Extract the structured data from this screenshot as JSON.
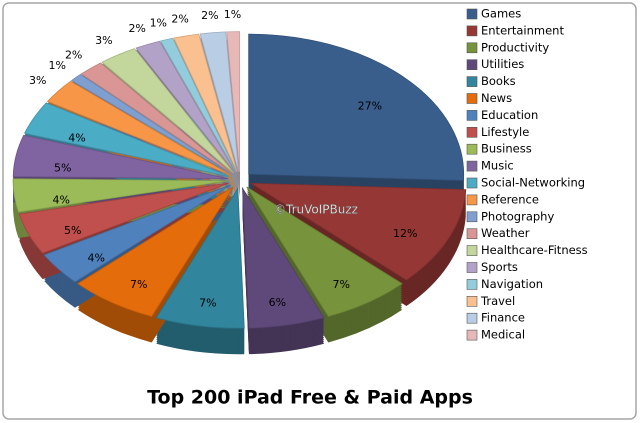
{
  "chart_data": {
    "type": "pie",
    "title": "Top 200 iPad Free & Paid Apps",
    "watermark": "©TruVoIPBuzz",
    "categories": [
      "Games",
      "Entertainment",
      "Productivity",
      "Utilities",
      "Books",
      "News",
      "Education",
      "Lifestyle",
      "Business",
      "Music",
      "Social-Networking",
      "Reference",
      "Photography",
      "Weather",
      "Healthcare-Fitness",
      "Sports",
      "Navigation",
      "Travel",
      "Finance",
      "Medical"
    ],
    "values": [
      27,
      12,
      7,
      6,
      7,
      7,
      4,
      5,
      4,
      5,
      4,
      3,
      1,
      2,
      3,
      2,
      1,
      2,
      2,
      1
    ],
    "value_labels": [
      "27%",
      "12%",
      "7%",
      "6%",
      "7%",
      "7%",
      "4%",
      "5%",
      "4%",
      "5%",
      "4%",
      "3%",
      "1%",
      "2%",
      "3%",
      "2%",
      "1%",
      "2%",
      "2%",
      "1%"
    ],
    "colors": [
      "#3a5e8c",
      "#953735",
      "#77933c",
      "#5f497a",
      "#31859c",
      "#e46c0a",
      "#4f81bd",
      "#c0504d",
      "#9bbb59",
      "#8064a2",
      "#4bacc6",
      "#f79646",
      "#7f9fd0",
      "#d99694",
      "#c3d69b",
      "#b3a2c7",
      "#93cddd",
      "#fac090",
      "#b9cde5",
      "#e6b9b8"
    ],
    "legend": "right"
  }
}
